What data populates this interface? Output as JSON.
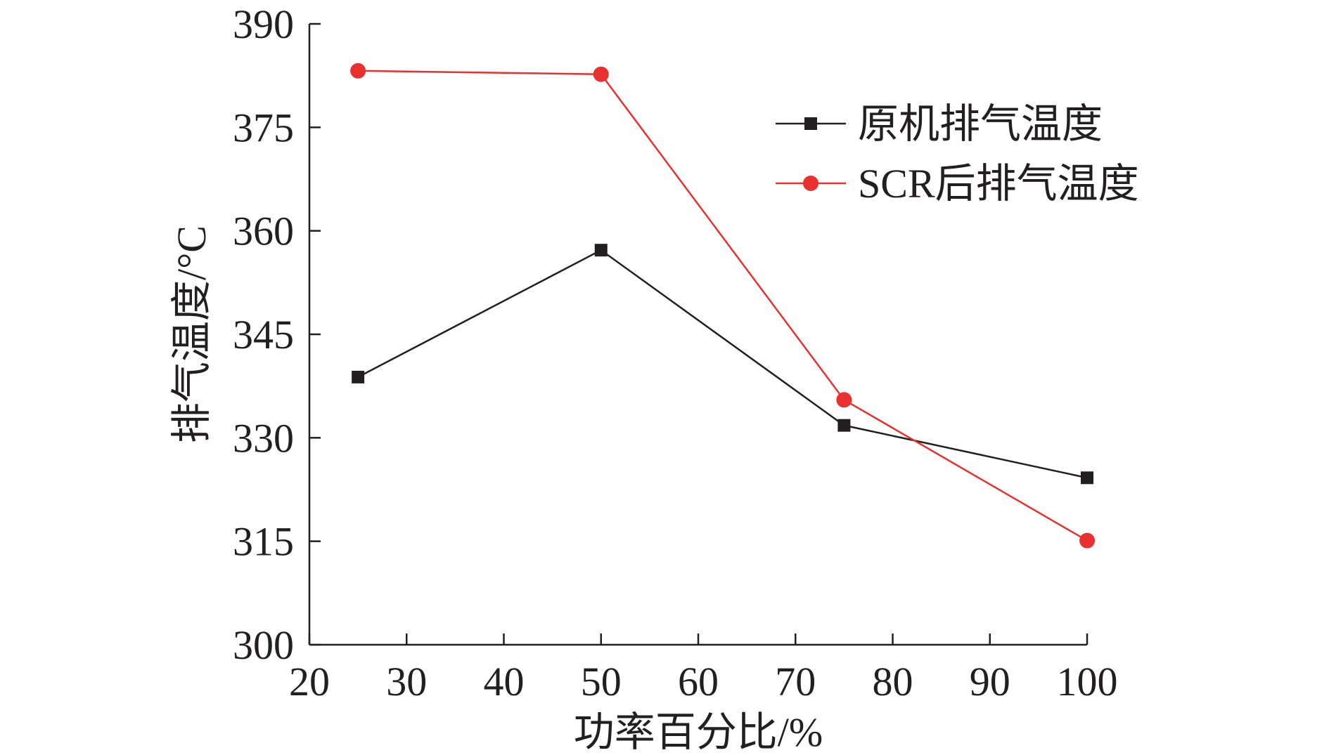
{
  "chart_data": {
    "type": "line",
    "title": "",
    "xlabel": "功率百分比/%",
    "ylabel": "排气温度/°C",
    "xlim": [
      20,
      100
    ],
    "ylim": [
      300,
      390
    ],
    "xticks": [
      "20",
      "30",
      "40",
      "50",
      "60",
      "70",
      "80",
      "90",
      "100"
    ],
    "yticks": [
      "300",
      "315",
      "330",
      "345",
      "360",
      "375",
      "390"
    ],
    "x": [
      25,
      50,
      75,
      100
    ],
    "series": [
      {
        "name": "原机排气温度",
        "color": "#231f20",
        "marker": "square",
        "values": [
          338.8,
          357.2,
          331.8,
          324.2
        ]
      },
      {
        "name": "SCR后排气温度",
        "color": "#e8312f",
        "marker": "circle",
        "values": [
          383.2,
          382.7,
          335.5,
          315.1
        ]
      }
    ],
    "legend_position": "top-right",
    "grid": false
  }
}
